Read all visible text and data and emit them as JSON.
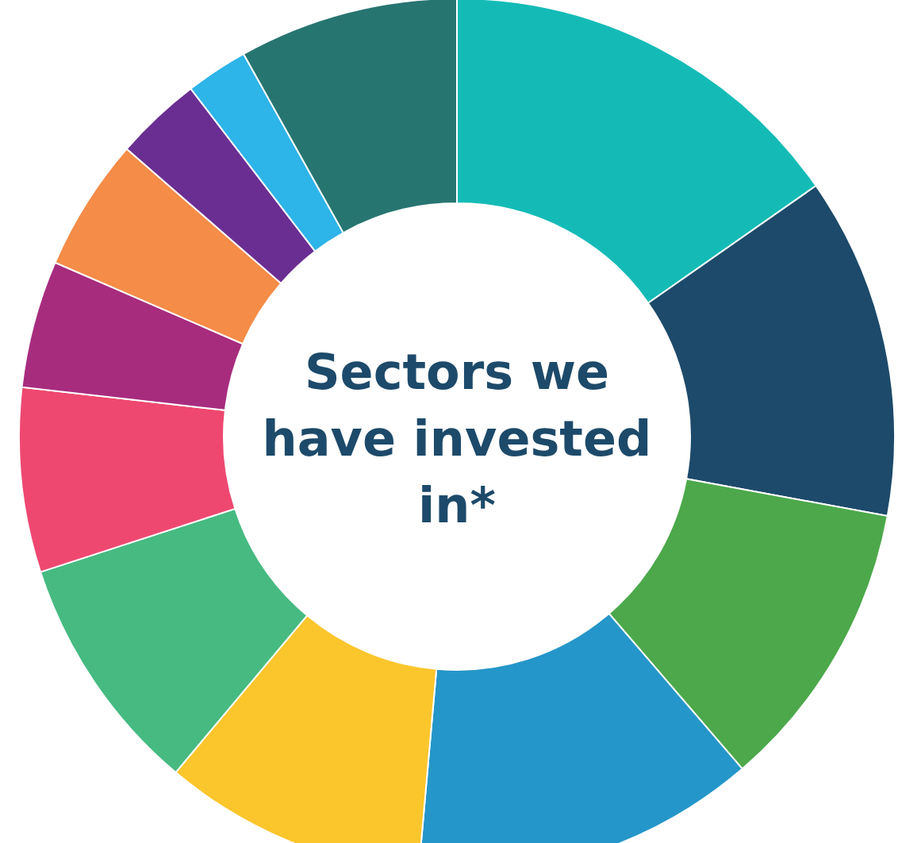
{
  "chart_data": {
    "type": "donut",
    "title": "Sectors we have invested in*",
    "categories": [
      null,
      null,
      null,
      null,
      null,
      null,
      null,
      null,
      null,
      null,
      null,
      null
    ],
    "values": [
      15.3,
      12.6,
      10.8,
      12.7,
      9.7,
      8.9,
      6.8,
      4.7,
      4.9,
      3.2,
      2.3,
      8.1
    ],
    "colors": [
      "#14bbb6",
      "#1d4a6a",
      "#4ca84a",
      "#2596c9",
      "#fbc52c",
      "#46ba81",
      "#ee4870",
      "#a72c7e",
      "#f58c47",
      "#6a2e92",
      "#2db4e8",
      "#277571"
    ]
  }
}
